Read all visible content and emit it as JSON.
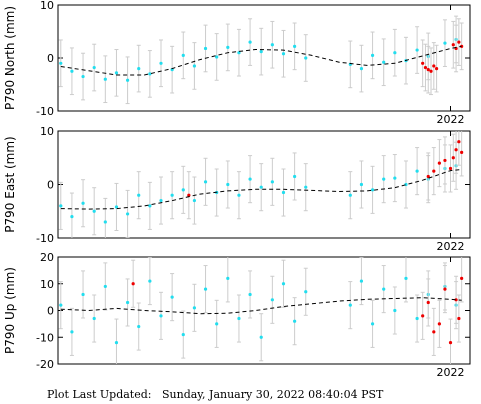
{
  "footer": {
    "label": "Plot Last Updated:",
    "timestamp": "Sunday, January 30, 2022 08:40:04 PST"
  },
  "colors": {
    "point": "#22ddee",
    "recent_point": "#ee0000",
    "error_bar": "#cccccc",
    "trend": "#000000",
    "frame": "#000000"
  },
  "chart_data": [
    {
      "type": "scatter",
      "station": "P790",
      "ylabel": "P790 North (mm)",
      "xlabel": "",
      "x_tick_label": "2022",
      "ylim": [
        -10,
        10
      ],
      "yticks": [
        -10,
        0,
        10
      ],
      "grid": false,
      "trend": {
        "style": "dashed",
        "x_year": [
          2015.0,
          2015.5,
          2016.0,
          2016.5,
          2017.0,
          2017.5,
          2018.0,
          2018.5,
          2019.0,
          2019.5,
          2020.0,
          2020.5,
          2021.0,
          2021.5,
          2022.0,
          2022.2
        ],
        "y_mm": [
          -1.6,
          -2.4,
          -3.2,
          -3.2,
          -2.0,
          -0.3,
          1.0,
          1.6,
          1.5,
          0.5,
          -0.8,
          -1.4,
          -1.0,
          0.4,
          1.8,
          2.2
        ]
      },
      "series": [
        {
          "x_year": [
            2015.0,
            2015.2,
            2015.4,
            2015.6,
            2015.8,
            2016.0,
            2016.2,
            2016.4,
            2016.6,
            2016.8,
            2017.0,
            2017.2,
            2017.4,
            2017.6,
            2017.8,
            2018.0,
            2018.2,
            2018.4,
            2018.6,
            2018.8,
            2019.0,
            2019.2,
            2019.4,
            2020.2,
            2020.4,
            2020.6,
            2020.8,
            2021.0,
            2021.2,
            2021.4,
            2021.6,
            2021.9,
            2022.1
          ],
          "y_mm": [
            -1.0,
            -2.5,
            -3.5,
            -1.8,
            -4.0,
            -2.8,
            -4.2,
            -2.0,
            -3.0,
            -1.0,
            -2.2,
            0.5,
            -1.5,
            1.8,
            0.2,
            2.0,
            1.0,
            3.0,
            1.2,
            2.5,
            0.8,
            2.2,
            0.0,
            -1.2,
            -2.0,
            0.5,
            -0.8,
            1.0,
            -0.5,
            1.5,
            0.3,
            2.8,
            3.5
          ]
        },
        {
          "x_year": [
            2021.5,
            2021.55,
            2021.6,
            2021.65,
            2021.7,
            2021.75,
            2022.05,
            2022.1,
            2022.15,
            2022.2
          ],
          "y_mm": [
            -1.0,
            -1.8,
            -2.2,
            -2.5,
            -1.5,
            -2.0,
            2.5,
            1.8,
            3.0,
            2.2
          ]
        }
      ]
    },
    {
      "type": "scatter",
      "station": "P790",
      "ylabel": "P790 East (mm)",
      "xlabel": "",
      "x_tick_label": "2022",
      "ylim": [
        -10,
        10
      ],
      "yticks": [
        -10,
        0,
        10
      ],
      "grid": false,
      "trend": {
        "style": "dashed",
        "x_year": [
          2015.0,
          2015.5,
          2016.0,
          2016.5,
          2017.0,
          2017.5,
          2018.0,
          2018.5,
          2019.0,
          2019.5,
          2020.0,
          2020.5,
          2021.0,
          2021.5,
          2022.0,
          2022.2
        ],
        "y_mm": [
          -4.5,
          -4.6,
          -4.5,
          -4.0,
          -3.0,
          -1.8,
          -1.2,
          -0.9,
          -0.9,
          -1.1,
          -1.3,
          -1.2,
          -0.6,
          0.8,
          2.6,
          2.8
        ]
      },
      "series": [
        {
          "x_year": [
            2015.0,
            2015.2,
            2015.4,
            2015.6,
            2015.8,
            2016.0,
            2016.2,
            2016.4,
            2016.6,
            2016.8,
            2017.0,
            2017.2,
            2017.4,
            2017.6,
            2017.8,
            2018.0,
            2018.2,
            2018.4,
            2018.6,
            2018.8,
            2019.0,
            2019.2,
            2019.4,
            2020.2,
            2020.4,
            2020.6,
            2020.8,
            2021.0,
            2021.2,
            2021.4,
            2021.6,
            2021.9,
            2022.1
          ],
          "y_mm": [
            -4.0,
            -6.0,
            -3.5,
            -5.0,
            -7.0,
            -4.2,
            -5.5,
            -2.0,
            -4.0,
            -3.0,
            -2.0,
            -1.0,
            -3.0,
            0.5,
            -1.5,
            0.0,
            -2.0,
            1.0,
            -0.5,
            0.5,
            -1.5,
            1.5,
            -0.5,
            -2.0,
            0.0,
            -1.0,
            1.0,
            1.2,
            0.0,
            2.5,
            1.0,
            3.0,
            3.5
          ]
        },
        {
          "x_year": [
            2017.3,
            2021.6,
            2021.7,
            2021.8,
            2021.9,
            2022.0,
            2022.05,
            2022.1,
            2022.15,
            2022.2
          ],
          "y_mm": [
            -2.0,
            1.5,
            2.5,
            4.0,
            4.5,
            3.0,
            5.0,
            6.5,
            8.0,
            6.0
          ]
        }
      ]
    },
    {
      "type": "scatter",
      "station": "P790",
      "ylabel": "P790 Up (mm)",
      "xlabel": "",
      "x_tick_label": "2022",
      "ylim": [
        -20,
        20
      ],
      "yticks": [
        -20,
        -10,
        0,
        10,
        20
      ],
      "grid": false,
      "trend": {
        "style": "dashed",
        "x_year": [
          2015.0,
          2015.5,
          2016.0,
          2016.5,
          2017.0,
          2017.5,
          2018.0,
          2018.5,
          2019.0,
          2019.5,
          2020.0,
          2020.5,
          2021.0,
          2021.5,
          2022.0,
          2022.2
        ],
        "y_mm": [
          0.5,
          0.0,
          0.8,
          0.0,
          -0.5,
          -1.2,
          -1.0,
          0.0,
          1.5,
          2.5,
          3.5,
          4.2,
          4.5,
          4.8,
          4.2,
          3.8
        ]
      },
      "series": [
        {
          "x_year": [
            2015.0,
            2015.2,
            2015.4,
            2015.6,
            2015.8,
            2016.0,
            2016.2,
            2016.4,
            2016.6,
            2016.8,
            2017.0,
            2017.2,
            2017.4,
            2017.6,
            2017.8,
            2018.0,
            2018.2,
            2018.4,
            2018.6,
            2018.8,
            2019.0,
            2019.2,
            2019.4,
            2020.2,
            2020.4,
            2020.6,
            2020.8,
            2021.0,
            2021.2,
            2021.4,
            2021.6,
            2021.9,
            2022.1
          ],
          "y_mm": [
            2.0,
            -8.0,
            6.0,
            -3.0,
            9.0,
            -12.0,
            3.0,
            -6.0,
            11.0,
            -2.0,
            5.0,
            -9.0,
            1.0,
            8.0,
            -5.0,
            12.0,
            -3.0,
            6.0,
            -10.0,
            4.0,
            10.0,
            -4.0,
            7.0,
            2.0,
            11.0,
            -5.0,
            8.0,
            0.0,
            12.0,
            -3.0,
            6.0,
            9.0,
            2.0
          ]
        },
        {
          "x_year": [
            2016.3,
            2021.5,
            2021.6,
            2021.7,
            2021.8,
            2021.9,
            2022.0,
            2022.1,
            2022.15,
            2022.2
          ],
          "y_mm": [
            10.0,
            -2.0,
            3.0,
            -8.0,
            -5.0,
            8.0,
            -12.0,
            4.0,
            -3.0,
            12.0
          ]
        }
      ]
    }
  ]
}
